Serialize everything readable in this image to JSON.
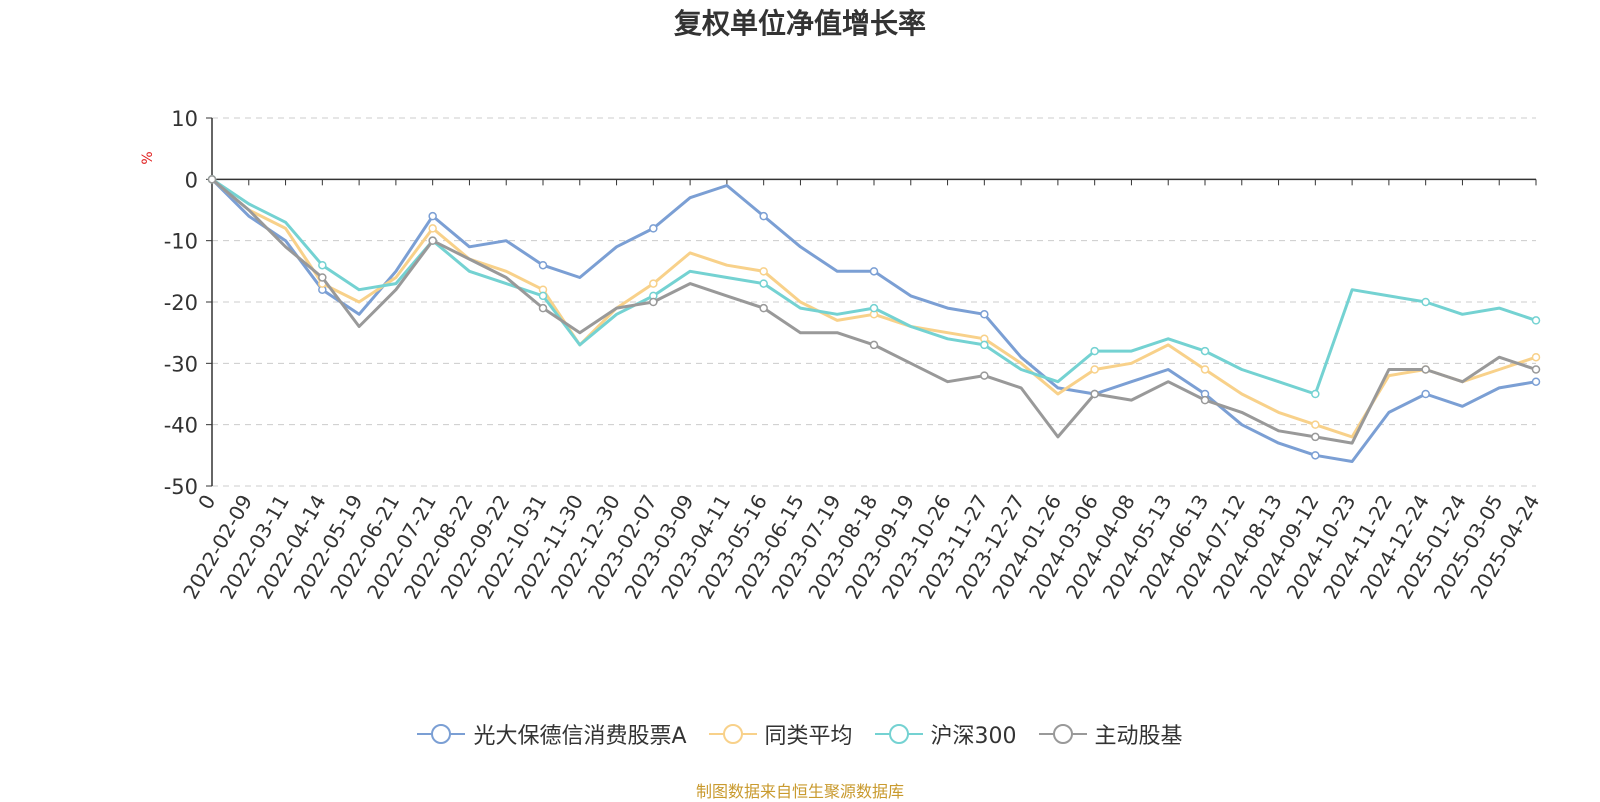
{
  "chart_data": {
    "type": "line",
    "title": "复权单位净值增长率",
    "ylabel": "%",
    "ylim": [
      -50,
      10
    ],
    "yticks": [
      10,
      0,
      -10,
      -20,
      -30,
      -40,
      -50
    ],
    "grid": true,
    "legend_position": "bottom",
    "x": [
      "0",
      "2022-02-09",
      "2022-03-11",
      "2022-04-14",
      "2022-05-19",
      "2022-06-21",
      "2022-07-21",
      "2022-08-22",
      "2022-09-22",
      "2022-10-31",
      "2022-11-30",
      "2022-12-30",
      "2023-02-07",
      "2023-03-09",
      "2023-04-11",
      "2023-05-16",
      "2023-06-15",
      "2023-07-19",
      "2023-08-18",
      "2023-09-19",
      "2023-10-26",
      "2023-11-27",
      "2023-12-27",
      "2024-01-26",
      "2024-03-06",
      "2024-04-08",
      "2024-05-13",
      "2024-06-13",
      "2024-07-12",
      "2024-08-13",
      "2024-09-12",
      "2024-10-23",
      "2024-11-22",
      "2024-12-24",
      "2025-01-24",
      "2025-03-05",
      "2025-04-24"
    ],
    "series": [
      {
        "name": "光大保德信消费股票A",
        "color": "#7b9fd4",
        "values": [
          0,
          -6,
          -10,
          -18,
          -22,
          -15,
          -6,
          -11,
          -10,
          -14,
          -16,
          -11,
          -8,
          -3,
          -1,
          -6,
          -11,
          -15,
          -15,
          -19,
          -21,
          -22,
          -29,
          -34,
          -35,
          -33,
          -31,
          -35,
          -40,
          -43,
          -45,
          -46,
          -38,
          -35,
          -37,
          -34,
          -33
        ]
      },
      {
        "name": "同类平均",
        "color": "#f8d18a",
        "values": [
          0,
          -5,
          -8,
          -17,
          -20,
          -16,
          -8,
          -13,
          -15,
          -18,
          -27,
          -21,
          -17,
          -12,
          -14,
          -15,
          -20,
          -23,
          -22,
          -24,
          -25,
          -26,
          -30,
          -35,
          -31,
          -30,
          -27,
          -31,
          -35,
          -38,
          -40,
          -42,
          -32,
          -31,
          -33,
          -31,
          -29
        ]
      },
      {
        "name": "沪深300",
        "color": "#74d2d2",
        "values": [
          0,
          -4,
          -7,
          -14,
          -18,
          -17,
          -10,
          -15,
          -17,
          -19,
          -27,
          -22,
          -19,
          -15,
          -16,
          -17,
          -21,
          -22,
          -21,
          -24,
          -26,
          -27,
          -31,
          -33,
          -28,
          -28,
          -26,
          -28,
          -31,
          -33,
          -35,
          -18,
          -19,
          -20,
          -22,
          -21,
          -23
        ]
      },
      {
        "name": "主动股基",
        "color": "#999999",
        "values": [
          0,
          -5,
          -11,
          -16,
          -24,
          -18,
          -10,
          -13,
          -16,
          -21,
          -25,
          -21,
          -20,
          -17,
          -19,
          -21,
          -25,
          -25,
          -27,
          -30,
          -33,
          -32,
          -34,
          -42,
          -35,
          -36,
          -33,
          -36,
          -38,
          -41,
          -42,
          -43,
          -31,
          -31,
          -33,
          -29,
          -31
        ]
      }
    ]
  },
  "source_note": "制图数据来自恒生聚源数据库"
}
